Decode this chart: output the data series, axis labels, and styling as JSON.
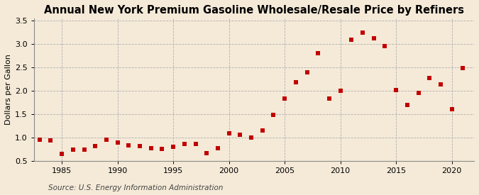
{
  "title": "Annual New York Premium Gasoline Wholesale/Resale Price by Refiners",
  "ylabel": "Dollars per Gallon",
  "source": "Source: U.S. Energy Information Administration",
  "years": [
    1983,
    1984,
    1985,
    1986,
    1987,
    1988,
    1989,
    1990,
    1991,
    1992,
    1993,
    1994,
    1995,
    1996,
    1997,
    1998,
    1999,
    2000,
    2001,
    2002,
    2003,
    2004,
    2005,
    2006,
    2007,
    2008,
    2009,
    2010,
    2011,
    2012,
    2013,
    2014,
    2015,
    2016,
    2017,
    2018,
    2019,
    2020,
    2021
  ],
  "values": [
    0.96,
    0.94,
    0.65,
    0.74,
    0.75,
    0.82,
    0.95,
    0.9,
    0.83,
    0.82,
    0.78,
    0.76,
    0.8,
    0.86,
    0.87,
    0.66,
    0.78,
    1.09,
    1.06,
    1.0,
    1.15,
    1.48,
    1.84,
    2.18,
    2.4,
    2.8,
    1.84,
    2.0,
    3.1,
    3.25,
    3.12,
    2.95,
    2.01,
    1.7,
    1.96,
    2.28,
    2.14,
    1.6,
    2.48
  ],
  "xlim": [
    1982.5,
    2022
  ],
  "ylim": [
    0.5,
    3.55
  ],
  "yticks": [
    0.5,
    1.0,
    1.5,
    2.0,
    2.5,
    3.0,
    3.5
  ],
  "ytick_labels": [
    "0.5",
    "1.0",
    "1.5",
    "2.0",
    "2.5",
    "3.0",
    "3.5"
  ],
  "xticks": [
    1985,
    1990,
    1995,
    2000,
    2005,
    2010,
    2015,
    2020
  ],
  "marker_color": "#c00000",
  "marker": "s",
  "marker_size": 4,
  "bg_color": "#f5ead8",
  "grid_color": "#b0b0b0",
  "title_fontsize": 10.5,
  "label_fontsize": 8,
  "tick_fontsize": 8,
  "source_fontsize": 7.5
}
